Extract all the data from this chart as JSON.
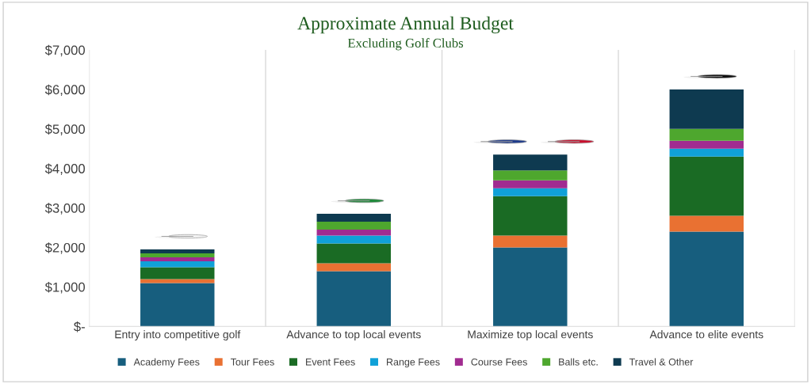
{
  "chart_data": {
    "type": "bar",
    "title": "Approximate Annual Budget",
    "subtitle": "Excluding Golf Clubs",
    "categories": [
      "Entry into competitive golf",
      "Advance to top local events",
      "Maximize top local events",
      "Advance to elite events"
    ],
    "stacked": true,
    "series": [
      {
        "name": "Academy Fees",
        "color": "#175e7e",
        "values": [
          1100,
          1400,
          2000,
          2400
        ]
      },
      {
        "name": "Tour Fees",
        "color": "#e97132",
        "values": [
          100,
          200,
          300,
          400
        ]
      },
      {
        "name": "Event Fees",
        "color": "#1a6b24",
        "values": [
          300,
          500,
          1000,
          1500
        ]
      },
      {
        "name": "Range Fees",
        "color": "#10a1d8",
        "values": [
          150,
          200,
          200,
          200
        ]
      },
      {
        "name": "Course Fees",
        "color": "#a12b90",
        "values": [
          100,
          150,
          200,
          200
        ]
      },
      {
        "name": "Balls etc.",
        "color": "#4ea72e",
        "values": [
          100,
          200,
          250,
          300
        ]
      },
      {
        "name": "Travel & Other",
        "color": "#0e3a50",
        "values": [
          100,
          200,
          400,
          1000
        ]
      }
    ],
    "ylim": [
      0,
      7000
    ],
    "yticks": [
      {
        "value": 0,
        "label": "$-"
      },
      {
        "value": 1000,
        "label": "$1,000"
      },
      {
        "value": 2000,
        "label": "$2,000"
      },
      {
        "value": 3000,
        "label": "$3,000"
      },
      {
        "value": 4000,
        "label": "$4,000"
      },
      {
        "value": 5000,
        "label": "$5,000"
      },
      {
        "value": 6000,
        "label": "$6,000"
      },
      {
        "value": 7000,
        "label": "$7,000"
      }
    ],
    "grid": "x",
    "legend": "bottom"
  }
}
